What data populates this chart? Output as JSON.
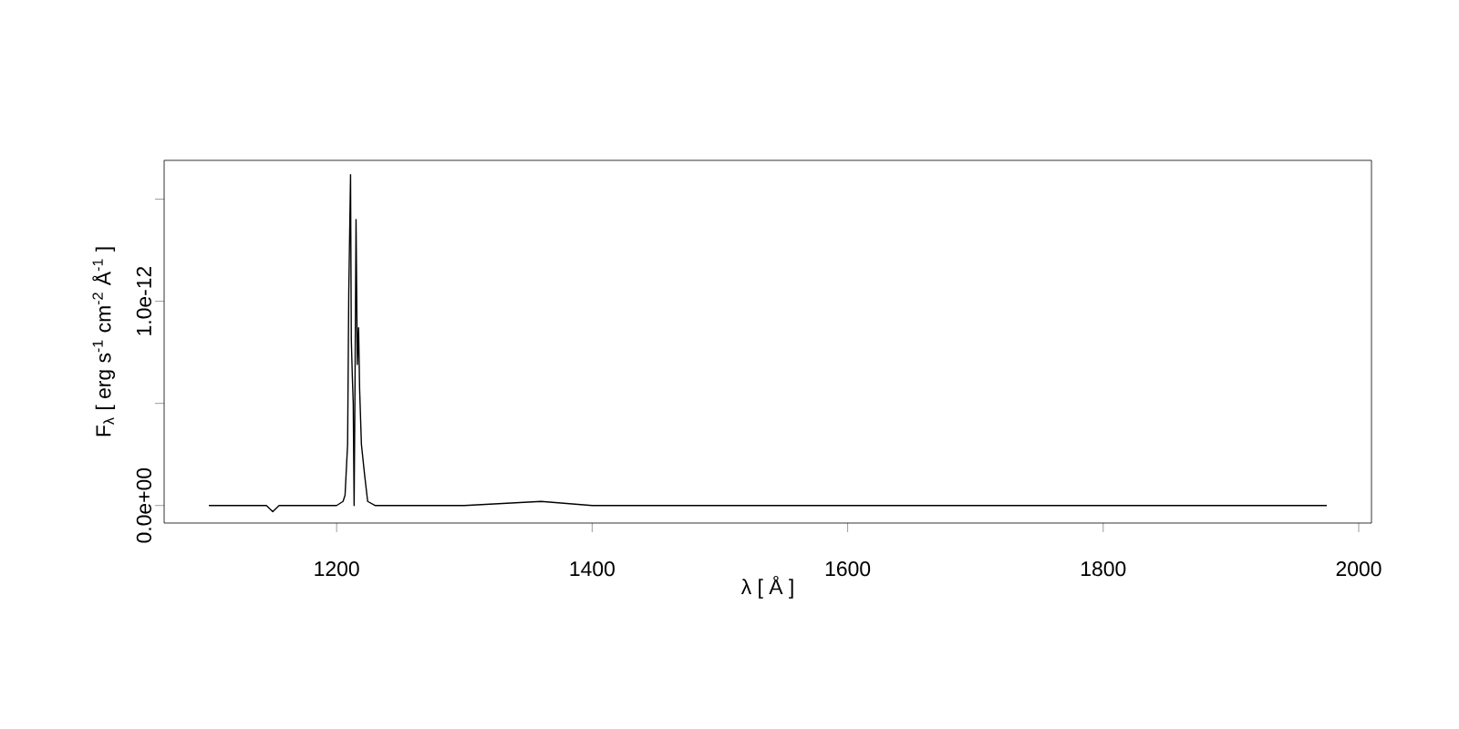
{
  "chart_data": {
    "type": "line",
    "xlabel": "λ [ Å ]",
    "ylabel": "F$_{λ}$ [ erg s$^{-1}$ cm$^{-2}$ Å$^{-1}$ ]",
    "x": [
      1100,
      1130,
      1145,
      1150,
      1155,
      1160,
      1180,
      1200,
      1205,
      1206.6,
      1208.6,
      1209.5,
      1210.9,
      1211.5,
      1212.3,
      1213.0,
      1213.7,
      1214.4,
      1215.2,
      1216.2,
      1217.2,
      1218.0,
      1219.4,
      1221.9,
      1224.3,
      1230,
      1300,
      1360,
      1400,
      1500,
      1550,
      1600,
      1700,
      1800,
      1900,
      1975
    ],
    "values": [
      0.0,
      0.0,
      0.0,
      -3e-14,
      0.0,
      0.0,
      0.0,
      0.0,
      2e-14,
      5e-14,
      3e-13,
      1.04e-12,
      1.62e-12,
      8.1e-13,
      6.3e-13,
      5e-13,
      0.0,
      6e-13,
      1.4e-12,
      6.9e-13,
      8.7e-13,
      5.7e-13,
      3e-13,
      1.5e-13,
      2e-14,
      0.0,
      0.0,
      2e-14,
      0.0,
      0.0,
      0.0,
      0.0,
      0.0,
      0.0,
      0.0,
      0.0
    ],
    "color": "#000000",
    "xlim": [
      1065,
      2010
    ],
    "ylim": [
      -8.6e-14,
      1.69e-12
    ],
    "xticks": [
      1200,
      1400,
      1600,
      1800,
      2000
    ],
    "yticks": [
      {
        "value": 0,
        "label": "0.0e+00"
      },
      {
        "value": 5e-13,
        "label": null
      },
      {
        "value": 1e-12,
        "label": "1.0e-12"
      },
      {
        "value": 1.5e-12,
        "label": null
      }
    ]
  }
}
